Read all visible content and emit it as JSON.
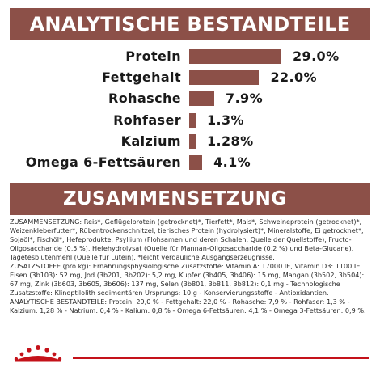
{
  "analytic": {
    "heading": "ANALYTISCHE BESTANDTEILE",
    "rows": [
      {
        "label": "Protein",
        "value": 29.0,
        "display": "29.0%"
      },
      {
        "label": "Fettgehalt",
        "value": 22.0,
        "display": "22.0%"
      },
      {
        "label": "Rohasche",
        "value": 7.9,
        "display": "7.9%"
      },
      {
        "label": "Rohfaser",
        "value": 1.3,
        "display": "1.3%"
      },
      {
        "label": "Kalzium",
        "value": 1.28,
        "display": "1.28%"
      },
      {
        "label": "Omega 6-Fettsäuren",
        "value": 4.1,
        "display": "4.1%"
      }
    ]
  },
  "composition": {
    "heading": "ZUSAMMENSETZUNG",
    "paragraphs": [
      "ZUSAMMENSETZUNG: Reis*, Geflügelprotein (getrocknet)*, Tierfett*, Mais*, Schweineprotein (getrocknet)*, Weizenkleberfutter*, Rübentrockenschnitzel, tierisches Protein (hydrolysiert)*, Mineralstoffe, Ei getrocknet*, Sojaöl*, Fischöl*, Hefeprodukte, Psyllium (Flohsamen und deren Schalen, Quelle der Quellstoffe), Fructo-Oligosaccharide (0,5 %), Hefehydrolysat (Quelle für Mannan-Oligosaccharide (0,2 %) und Beta-Glucane), Tagetesblütenmehl (Quelle für Lutein). *leicht verdauliche Ausgangserzeugnisse.",
      "ZUSATZSTOFFE (pro kg): Ernährungsphysiologische Zusatzstoffe: Vitamin A: 17000 IE, Vitamin D3: 1100 IE, Eisen (3b103): 52 mg, Jod (3b201, 3b202): 5,2 mg, Kupfer (3b405, 3b406): 15 mg, Mangan (3b502, 3b504): 67 mg, Zink (3b603, 3b605, 3b606): 137 mg, Selen (3b801, 3b811, 3b812): 0,1 mg - Technologische Zusatzstoffe: Klinoptilolith sedimentären Ursprungs: 10 g - Konservierungsstoffe - Antioxidantien.",
      "ANALYTISCHE BESTANDTEILE: Protein: 29,0 % - Fettgehalt: 22,0 % - Rohasche: 7,9 % - Rohfaser: 1,3 % - Kalzium: 1,28 % - Natrium: 0,4 % - Kalium: 0,8 % - Omega 6-Fettsäuren: 4,1 % - Omega 3-Fettsäuren: 0,9 %."
    ]
  },
  "colors": {
    "accent": "#8c5048",
    "brand_red": "#c4121a"
  },
  "logo": {
    "icon": "crown-icon"
  }
}
